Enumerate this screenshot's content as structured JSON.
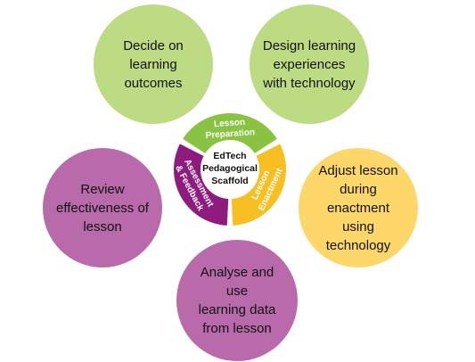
{
  "colors": {
    "green": "#bcdb82",
    "yellow": "#fed76b",
    "purple": "#b86aab",
    "ring_green": "#8ac341",
    "ring_yellow": "#f7bf22",
    "ring_purple": "#8e1c7e"
  },
  "bubbles": {
    "top_left": "Decide on\nlearning outcomes",
    "top_right": "Design learning\nexperiences\nwith technology",
    "left": "Review\neffectiveness of\nlesson",
    "right": "Adjust lesson\nduring enactment\nusing technology",
    "bottom": "Analyse and use\nlearning data\nfrom lesson"
  },
  "wheel": {
    "center_lines": [
      "EdTech",
      "Pedagogical",
      "Scaffold"
    ],
    "segments": {
      "preparation": [
        "Lesson",
        "Preparation"
      ],
      "enactment": [
        "Lesson",
        "Enactment"
      ],
      "assessment": [
        "Assessment",
        "& Feedback"
      ]
    }
  }
}
